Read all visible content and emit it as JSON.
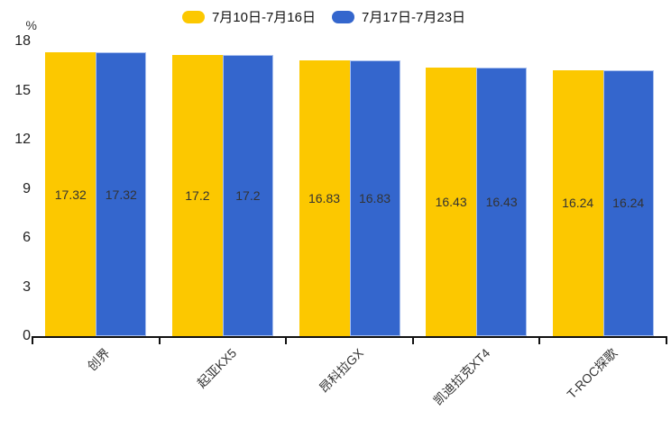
{
  "legend": {
    "items": [
      {
        "label": "7月10日-7月16日",
        "color": "#fcc800"
      },
      {
        "label": "7月17日-7月23日",
        "color": "#3466cd"
      }
    ]
  },
  "chart_data": {
    "type": "bar",
    "title": "",
    "unit_label": "%",
    "categories": [
      "创界",
      "起亚KX5",
      "昂科拉GX",
      "凯迪拉克XT4",
      "T-ROC探歌"
    ],
    "series": [
      {
        "name": "7月10日-7月16日",
        "color": "#fcc800",
        "values": [
          17.32,
          17.2,
          16.83,
          16.43,
          16.24
        ]
      },
      {
        "name": "7月17日-7月23日",
        "color": "#3466cd",
        "edge_color": "#a9c0ee",
        "values": [
          17.32,
          17.2,
          16.83,
          16.43,
          16.24
        ]
      }
    ],
    "xlabel": "",
    "ylabel": "%",
    "ylim": [
      0,
      18
    ],
    "yticks": [
      0,
      3,
      6,
      9,
      12,
      15,
      18
    ],
    "grid": false,
    "legend_position": "top",
    "bar_value_labels": true,
    "x_label_rotation_deg": -45
  }
}
